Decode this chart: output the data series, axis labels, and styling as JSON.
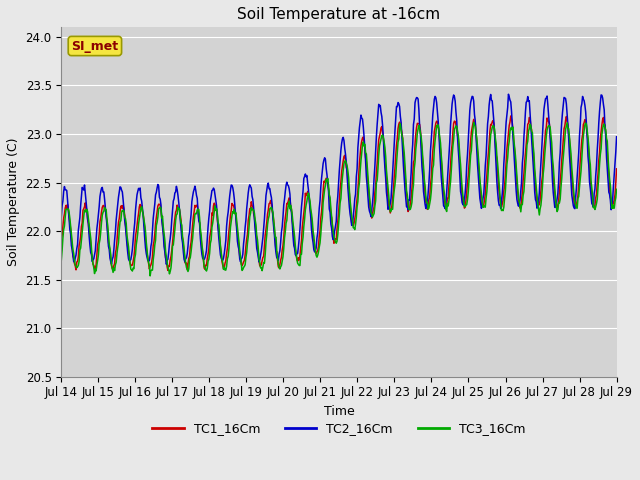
{
  "title": "Soil Temperature at -16cm",
  "ylabel": "Soil Temperature (C)",
  "xlabel": "Time",
  "annotation": "SI_met",
  "ylim": [
    20.5,
    24.1
  ],
  "fig_bg": "#e8e8e8",
  "plot_bg": "#d3d3d3",
  "grid_color": "#ffffff",
  "tc1_color": "#cc0000",
  "tc2_color": "#0000cc",
  "tc3_color": "#00aa00",
  "xtick_labels": [
    "Jul 14",
    "Jul 15",
    "Jul 16",
    "Jul 17",
    "Jul 18",
    "Jul 19",
    "Jul 20",
    "Jul 21",
    "Jul 22",
    "Jul 23",
    "Jul 24",
    "Jul 25",
    "Jul 26",
    "Jul 27",
    "Jul 28",
    "Jul 29"
  ],
  "legend_labels": [
    "TC1_16Cm",
    "TC2_16Cm",
    "TC3_16Cm"
  ]
}
